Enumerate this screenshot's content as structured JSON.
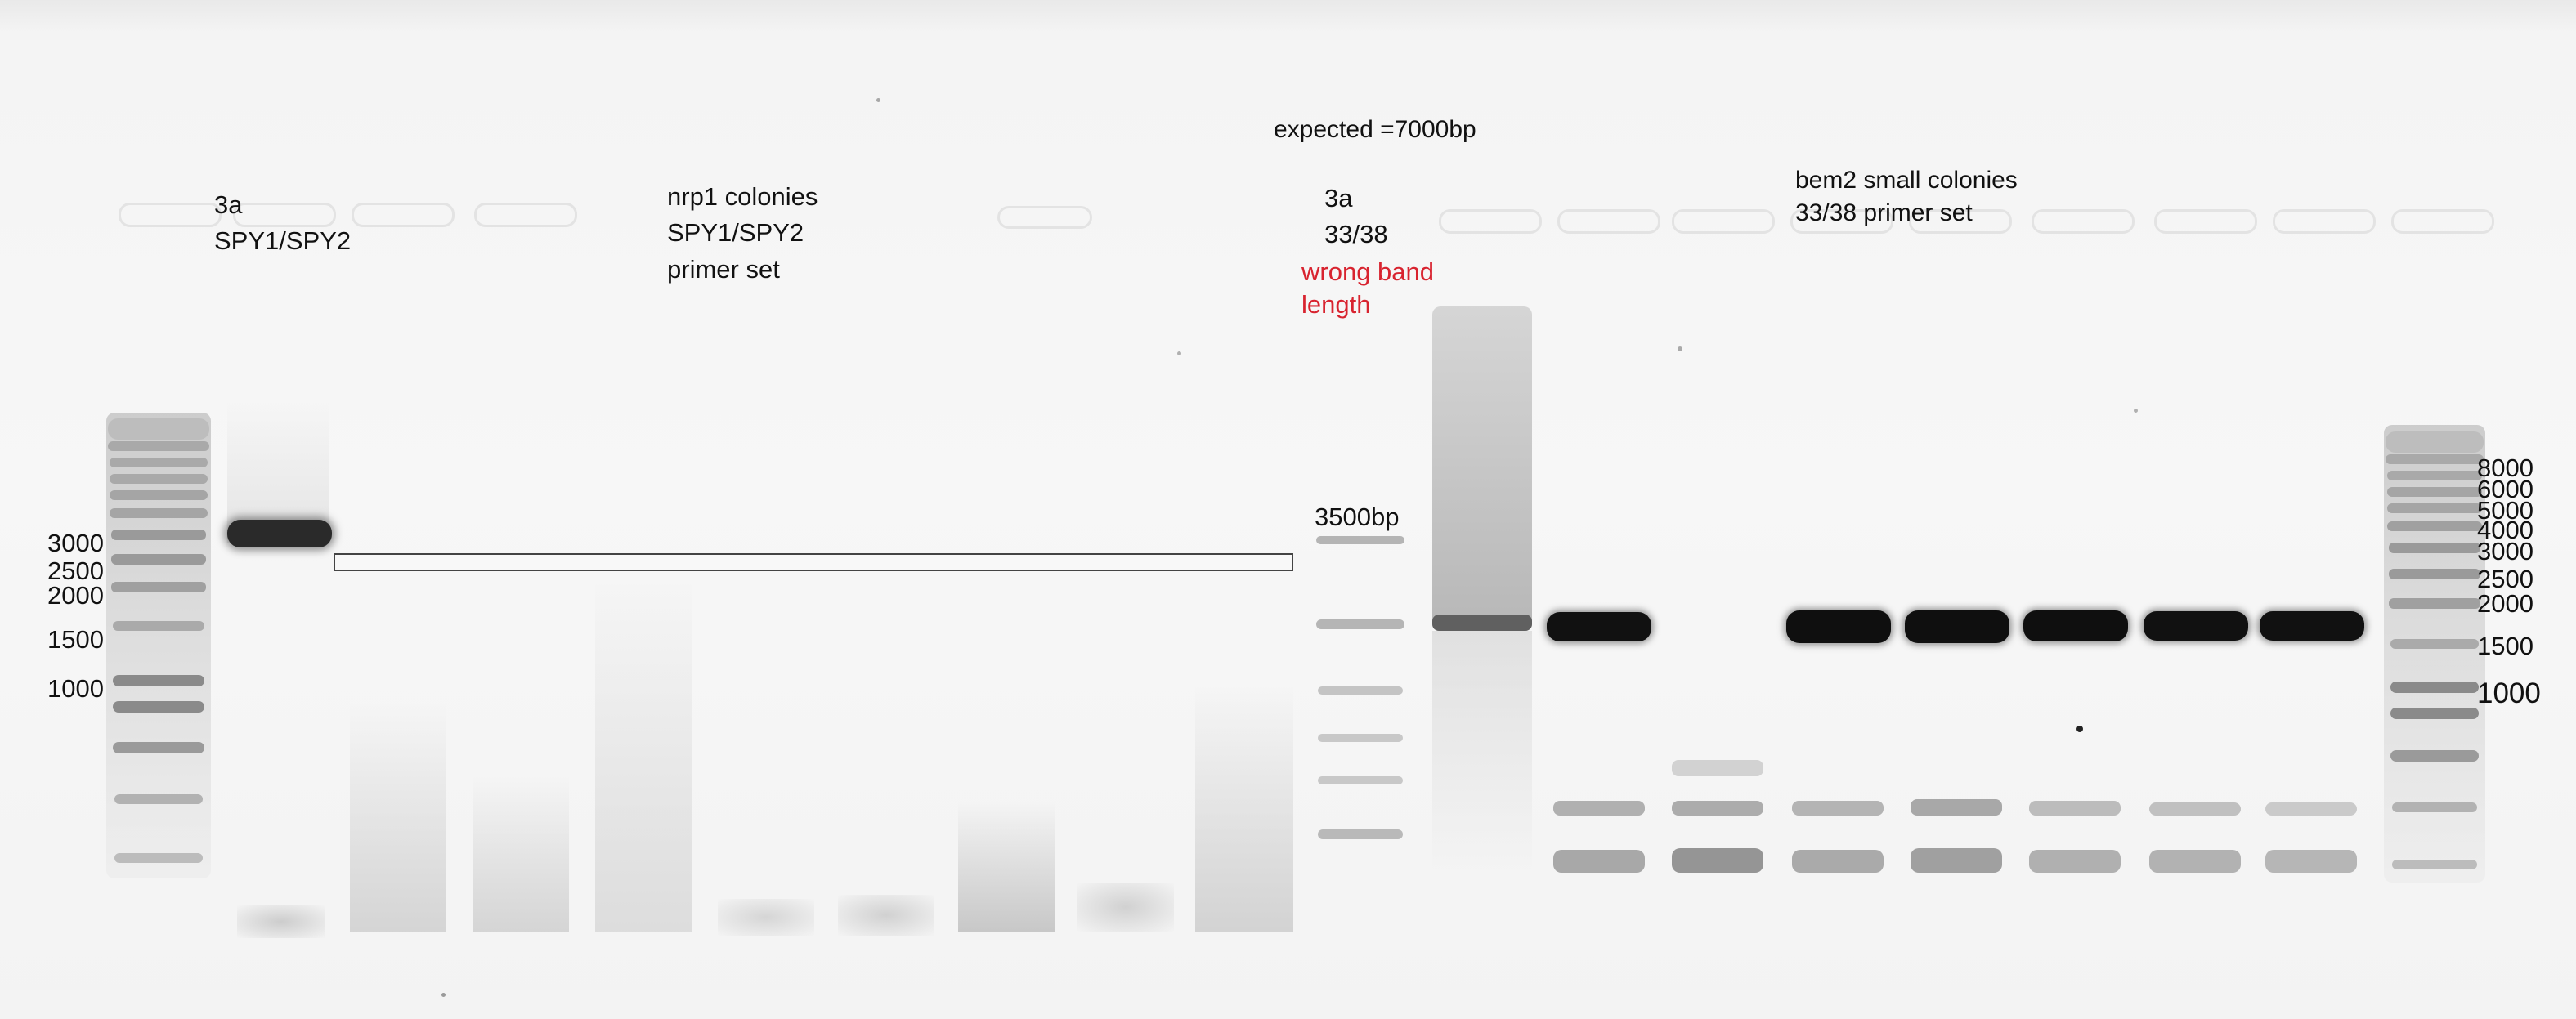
{
  "labels": {
    "left_3a": "3a",
    "left_primers": "SPY1/SPY2",
    "nrp1_title": "nrp1 colonies",
    "nrp1_primers": "SPY1/SPY2",
    "nrp1_set": "primer set",
    "expected": "expected =7000bp",
    "mid_3a": "3a",
    "mid_primers": "33/38",
    "wrong_1": "wrong band",
    "wrong_2": "length",
    "bp_3500": "3500bp",
    "bem2_title": "bem2 small colonies",
    "bem2_set": "33/38 primer set"
  },
  "left_ladder_sizes": [
    "3000",
    "2500",
    "2000",
    "1500",
    "1000"
  ],
  "right_ladder_sizes": [
    "8000",
    "6000",
    "5000",
    "4000",
    "3000",
    "2500",
    "2000",
    "1500",
    "1000"
  ],
  "colors": {
    "label_text": "#111111",
    "warning_text": "#d8232f",
    "strong_band": "#111111",
    "ladder_band": "#8a8a8a",
    "faint_band": "#b8b8b8",
    "background": "#f6f6f6"
  }
}
